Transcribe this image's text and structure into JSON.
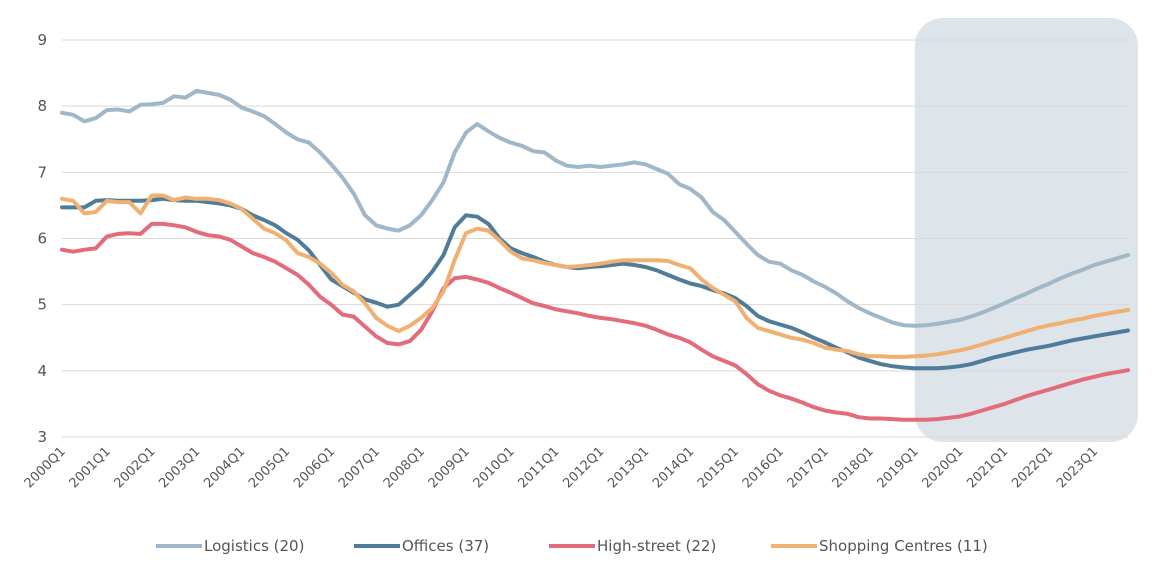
{
  "chart_data": {
    "type": "line",
    "x_start": "2000Q1",
    "x_end": "2023Q4",
    "xticks": [
      "2000Q1",
      "2001Q1",
      "2002Q1",
      "2003Q1",
      "2004Q1",
      "2005Q1",
      "2006Q1",
      "2007Q1",
      "2008Q1",
      "2009Q1",
      "2010Q1",
      "2011Q1",
      "2012Q1",
      "2013Q1",
      "2014Q1",
      "2015Q1",
      "2016Q1",
      "2017Q1",
      "2018Q1",
      "2019Q1",
      "2020Q1",
      "2021Q1",
      "2022Q1",
      "2023Q1"
    ],
    "ylim": [
      3,
      9
    ],
    "yticks": [
      "3",
      "4",
      "5",
      "6",
      "7",
      "8",
      "9"
    ],
    "grid": true,
    "forecast_region": {
      "from": "2019Q1",
      "to": "2023Q4",
      "color": "#dde5ea"
    },
    "legend_position": "bottom",
    "series": [
      {
        "name": "Logistics (20)",
        "color": "#9fb7c7",
        "values": [
          7.9,
          7.87,
          7.77,
          7.82,
          7.94,
          7.95,
          7.92,
          8.02,
          8.03,
          8.05,
          8.15,
          8.13,
          8.23,
          8.2,
          8.17,
          8.1,
          7.98,
          7.92,
          7.85,
          7.73,
          7.6,
          7.5,
          7.45,
          7.3,
          7.12,
          6.92,
          6.68,
          6.35,
          6.2,
          6.15,
          6.12,
          6.2,
          6.35,
          6.58,
          6.85,
          7.3,
          7.6,
          7.73,
          7.62,
          7.52,
          7.45,
          7.4,
          7.32,
          7.3,
          7.18,
          7.1,
          7.08,
          7.1,
          7.08,
          7.1,
          7.12,
          7.15,
          7.12,
          7.05,
          6.98,
          6.82,
          6.75,
          6.62,
          6.4,
          6.28,
          6.1,
          5.92,
          5.75,
          5.65,
          5.62,
          5.52,
          5.45,
          5.35,
          5.27,
          5.17,
          5.05,
          4.95,
          4.87,
          4.8,
          4.73,
          4.69,
          4.68,
          4.69,
          4.71,
          4.74,
          4.77,
          4.82,
          4.88,
          4.95,
          5.02,
          5.1,
          5.17,
          5.25,
          5.32,
          5.4,
          5.47,
          5.53,
          5.6,
          5.65,
          5.7,
          5.75
        ]
      },
      {
        "name": "Offices (37)",
        "color": "#4e7c99",
        "values": [
          6.47,
          6.47,
          6.47,
          6.57,
          6.58,
          6.57,
          6.57,
          6.57,
          6.58,
          6.6,
          6.58,
          6.57,
          6.57,
          6.55,
          6.53,
          6.5,
          6.45,
          6.35,
          6.28,
          6.2,
          6.08,
          5.98,
          5.82,
          5.6,
          5.38,
          5.28,
          5.18,
          5.08,
          5.03,
          4.97,
          5.0,
          5.15,
          5.3,
          5.5,
          5.75,
          6.17,
          6.35,
          6.33,
          6.22,
          6.0,
          5.85,
          5.78,
          5.72,
          5.65,
          5.6,
          5.57,
          5.55,
          5.57,
          5.58,
          5.6,
          5.62,
          5.6,
          5.57,
          5.52,
          5.45,
          5.38,
          5.32,
          5.28,
          5.22,
          5.17,
          5.1,
          4.98,
          4.83,
          4.75,
          4.7,
          4.65,
          4.58,
          4.5,
          4.43,
          4.35,
          4.28,
          4.2,
          4.15,
          4.1,
          4.07,
          4.05,
          4.04,
          4.04,
          4.04,
          4.05,
          4.07,
          4.1,
          4.15,
          4.2,
          4.24,
          4.28,
          4.32,
          4.35,
          4.38,
          4.42,
          4.46,
          4.49,
          4.52,
          4.55,
          4.58,
          4.61
        ]
      },
      {
        "name": "High-street (22)",
        "color": "#e36b7c",
        "values": [
          5.83,
          5.8,
          5.83,
          5.85,
          6.03,
          6.07,
          6.08,
          6.07,
          6.22,
          6.22,
          6.2,
          6.17,
          6.1,
          6.05,
          6.03,
          5.98,
          5.88,
          5.78,
          5.72,
          5.65,
          5.55,
          5.45,
          5.3,
          5.12,
          5.0,
          4.85,
          4.82,
          4.67,
          4.52,
          4.42,
          4.4,
          4.45,
          4.62,
          4.9,
          5.25,
          5.4,
          5.42,
          5.38,
          5.33,
          5.25,
          5.18,
          5.1,
          5.02,
          4.98,
          4.93,
          4.9,
          4.87,
          4.83,
          4.8,
          4.78,
          4.75,
          4.72,
          4.68,
          4.62,
          4.55,
          4.5,
          4.43,
          4.32,
          4.22,
          4.15,
          4.08,
          3.95,
          3.8,
          3.7,
          3.63,
          3.58,
          3.52,
          3.45,
          3.4,
          3.37,
          3.35,
          3.3,
          3.28,
          3.28,
          3.27,
          3.26,
          3.26,
          3.26,
          3.27,
          3.29,
          3.31,
          3.35,
          3.4,
          3.45,
          3.5,
          3.56,
          3.62,
          3.67,
          3.72,
          3.77,
          3.82,
          3.87,
          3.91,
          3.95,
          3.98,
          4.01
        ]
      },
      {
        "name": "Shopping Centres (11)",
        "color": "#f0b071",
        "values": [
          6.6,
          6.57,
          6.38,
          6.4,
          6.57,
          6.55,
          6.55,
          6.38,
          6.65,
          6.65,
          6.58,
          6.62,
          6.6,
          6.6,
          6.58,
          6.53,
          6.45,
          6.3,
          6.15,
          6.08,
          5.97,
          5.78,
          5.72,
          5.62,
          5.48,
          5.3,
          5.2,
          5.02,
          4.8,
          4.68,
          4.6,
          4.68,
          4.8,
          4.95,
          5.2,
          5.68,
          6.08,
          6.15,
          6.12,
          5.97,
          5.8,
          5.7,
          5.67,
          5.63,
          5.6,
          5.57,
          5.58,
          5.6,
          5.62,
          5.65,
          5.67,
          5.67,
          5.67,
          5.67,
          5.66,
          5.6,
          5.55,
          5.38,
          5.25,
          5.15,
          5.05,
          4.8,
          4.65,
          4.6,
          4.55,
          4.5,
          4.47,
          4.42,
          4.35,
          4.32,
          4.3,
          4.25,
          4.22,
          4.22,
          4.21,
          4.21,
          4.22,
          4.23,
          4.25,
          4.28,
          4.31,
          4.35,
          4.4,
          4.45,
          4.5,
          4.55,
          4.6,
          4.65,
          4.69,
          4.72,
          4.76,
          4.79,
          4.83,
          4.86,
          4.89,
          4.92
        ]
      }
    ]
  }
}
